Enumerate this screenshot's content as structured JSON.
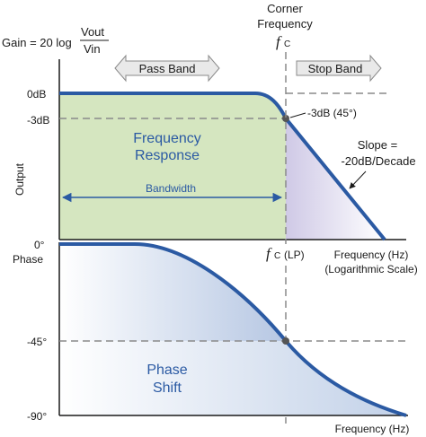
{
  "gain_formula": {
    "prefix": "Gain = 20 log",
    "numerator": "Vout",
    "denominator": "Vin"
  },
  "corner": {
    "line1": "Corner",
    "line2": "Frequency",
    "symbol": "f",
    "sub": "C",
    "lp_symbol": "f",
    "lp_sub": "C",
    "lp_suffix": "(LP)"
  },
  "bands": {
    "pass": "Pass Band",
    "stop": "Stop Band"
  },
  "magnitude": {
    "ylabel": "Output",
    "tick_0db": "0dB",
    "tick_3db": "-3dB",
    "point_label": "-3dB (45°)",
    "region_line1": "Frequency",
    "region_line2": "Response",
    "bandwidth": "Bandwidth",
    "slope_line1": "Slope =",
    "slope_line2": "-20dB/Decade",
    "xlabel_line1": "Frequency (Hz)",
    "xlabel_line2": "(Logarithmic Scale)"
  },
  "phase": {
    "title": "Phase",
    "tick_0": "0°",
    "tick_45": "-45°",
    "tick_90": "-90°",
    "region_line1": "Phase",
    "region_line2": "Shift",
    "xlabel": "Frequency (Hz)"
  },
  "colors": {
    "curve": "#2b5aa3",
    "passband_fill": "#d5e6c0",
    "stopband_fill": "#d9d4ea",
    "phase_fill": "#bccde6",
    "band_arrow_fill": "#e9e9e9"
  }
}
